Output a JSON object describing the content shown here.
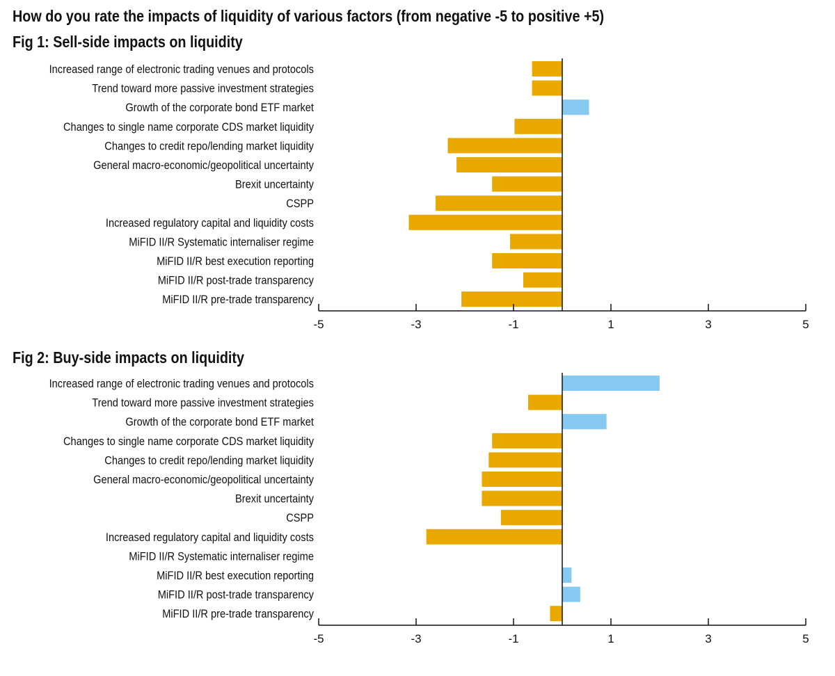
{
  "title": "How do you rate the impacts of liquidity of various factors (from negative -5 to positive +5)",
  "colors": {
    "negative": "#E8A800",
    "positive": "#86CAF2",
    "axis": "#111111"
  },
  "chart_data": [
    {
      "type": "bar",
      "orientation": "horizontal",
      "title": "Fig 1: Sell-side impacts on liquidity",
      "categories": [
        "Increased range of electronic trading venues and protocols",
        "Trend toward more passive investment strategies",
        "Growth of the corporate bond ETF market",
        "Changes to single name corporate CDS market liquidity",
        "Changes to credit repo/lending market liquidity",
        "General macro-economic/geopolitical uncertainty",
        "Brexit uncertainty",
        "CSPP",
        "Increased regulatory capital and liquidity costs",
        "MiFID II/R Systematic internaliser regime",
        "MiFID II/R best execution reporting",
        "MiFID II/R post-trade transparency",
        "MiFID II/R pre-trade transparency"
      ],
      "values": [
        -0.62,
        -0.62,
        0.55,
        -0.98,
        -2.35,
        -2.17,
        -1.44,
        -2.6,
        -3.15,
        -1.07,
        -1.44,
        -0.8,
        -2.07
      ],
      "xlim": [
        -5,
        5
      ],
      "xticks": [
        -5,
        -3,
        -1,
        1,
        3,
        5
      ],
      "xtick_labels": [
        "-5",
        "-3",
        "-1",
        "1",
        "3",
        "5"
      ],
      "legend": "none",
      "grid": false
    },
    {
      "type": "bar",
      "orientation": "horizontal",
      "title": "Fig 2: Buy-side impacts on liquidity",
      "categories": [
        "Increased range of electronic trading venues and protocols",
        "Trend toward more passive investment strategies",
        "Growth of the corporate bond ETF market",
        "Changes to single name corporate CDS market liquidity",
        "Changes to credit repo/lending market liquidity",
        "General macro-economic/geopolitical uncertainty",
        "Brexit uncertainty",
        "CSPP",
        "Increased regulatory capital and liquidity costs",
        "MiFID II/R Systematic internaliser regime",
        "MiFID II/R best execution reporting",
        "MiFID II/R post-trade transparency",
        "MiFID II/R pre-trade transparency"
      ],
      "values": [
        2.0,
        -0.7,
        0.91,
        -1.44,
        -1.51,
        -1.65,
        -1.65,
        -1.26,
        -2.79,
        0,
        0.19,
        0.37,
        -0.25
      ],
      "xlim": [
        -5,
        5
      ],
      "xticks": [
        -5,
        -3,
        -1,
        1,
        3,
        5
      ],
      "xtick_labels": [
        "-5",
        "-3",
        "-1",
        "1",
        "3",
        "5"
      ],
      "legend": "none",
      "grid": false
    }
  ]
}
